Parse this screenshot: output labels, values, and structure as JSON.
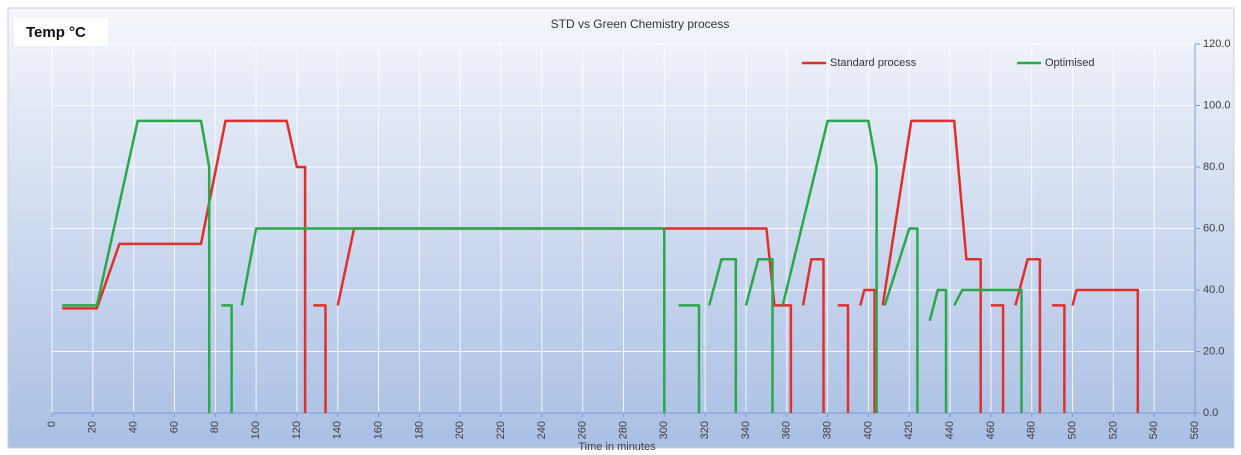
{
  "chart_data": {
    "type": "line",
    "title": "STD vs Green Chemistry  process",
    "annotation": "Temp °C",
    "x_label": "Time in minutes",
    "xlim": [
      0,
      560
    ],
    "xticks": [
      0,
      20,
      40,
      60,
      80,
      100,
      120,
      140,
      160,
      180,
      200,
      220,
      240,
      260,
      280,
      300,
      320,
      340,
      360,
      380,
      400,
      420,
      440,
      460,
      480,
      500,
      520,
      540,
      560
    ],
    "ylim": [
      0,
      120
    ],
    "yticks": [
      {
        "value": 0,
        "label": "0.0"
      },
      {
        "value": 20,
        "label": "20.0"
      },
      {
        "value": 40,
        "label": "40.0"
      },
      {
        "value": 60,
        "label": "60.0"
      },
      {
        "value": 80,
        "label": "80.0"
      },
      {
        "value": 100,
        "label": "100.0"
      },
      {
        "value": 120,
        "label": "120.0"
      }
    ],
    "grid": true,
    "legend": "top-right",
    "series": [
      {
        "name": "Standard process",
        "color": "#e0302b",
        "x": [
          5,
          22,
          33,
          73,
          85,
          115,
          120,
          124,
          124,
          null,
          128,
          134,
          134,
          null,
          140,
          148,
          350,
          354,
          362,
          362,
          null,
          368,
          372,
          378,
          378,
          null,
          385,
          390,
          390,
          null,
          396,
          398,
          403,
          403,
          null,
          407,
          421,
          442,
          448,
          455,
          455,
          null,
          460,
          466,
          466,
          null,
          472,
          478,
          484,
          484,
          null,
          490,
          496,
          496,
          null,
          500,
          502,
          532,
          532
        ],
        "values": [
          34,
          34,
          55,
          55,
          95,
          95,
          80,
          80,
          0,
          null,
          35,
          35,
          0,
          null,
          35,
          60,
          60,
          35,
          35,
          0,
          null,
          35,
          50,
          50,
          0,
          null,
          35,
          35,
          0,
          null,
          35,
          40,
          40,
          0,
          null,
          35,
          95,
          95,
          50,
          50,
          0,
          null,
          35,
          35,
          0,
          null,
          35,
          50,
          50,
          0,
          null,
          35,
          35,
          0,
          null,
          35,
          40,
          40,
          0
        ]
      },
      {
        "name": "Optimised",
        "color": "#2aa84a",
        "x": [
          5,
          22,
          42,
          73,
          77,
          77,
          null,
          83,
          88,
          88,
          null,
          93,
          100,
          300,
          300,
          null,
          307,
          317,
          317,
          null,
          322,
          328,
          335,
          335,
          null,
          340,
          346,
          353,
          353,
          null,
          358,
          380,
          400,
          404,
          404,
          null,
          408,
          420,
          424,
          424,
          null,
          430,
          434,
          438,
          438,
          null,
          442,
          446,
          475,
          475
        ],
        "values": [
          35,
          35,
          95,
          95,
          80,
          0,
          null,
          35,
          35,
          0,
          null,
          35,
          60,
          60,
          0,
          null,
          35,
          35,
          0,
          null,
          35,
          50,
          50,
          0,
          null,
          35,
          50,
          50,
          0,
          null,
          35,
          95,
          95,
          80,
          0,
          null,
          35,
          60,
          60,
          0,
          null,
          30,
          40,
          40,
          0,
          null,
          35,
          40,
          40,
          0
        ]
      }
    ]
  }
}
